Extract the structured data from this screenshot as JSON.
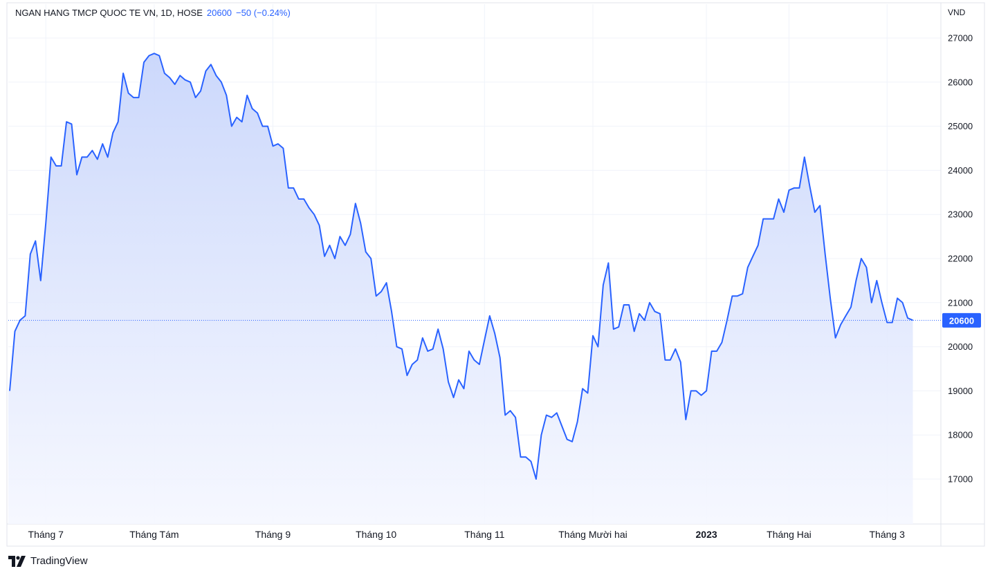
{
  "legend": {
    "symbol": "NGAN HANG TMCP QUOC TE VN, 1D, HOSE",
    "last_price": "20600",
    "change": "−50 (−0.24%)"
  },
  "footer": {
    "brand": "TradingView",
    "logo_icon": "tradingview-logo-icon"
  },
  "colors": {
    "line": "#2962ff",
    "fill_top": "#c9d6fb",
    "fill_bottom": "#f5f7ff",
    "price_tag": "#2962ff",
    "grid": "#f0f3fa"
  },
  "chart_data": {
    "type": "area",
    "title": "NGAN HANG TMCP QUOC TE VN, 1D, HOSE",
    "xlabel": "",
    "ylabel": "VND",
    "currency_label": "VND",
    "ylim": [
      16300,
      27600
    ],
    "y_ticks": [
      17000,
      18000,
      19000,
      20000,
      21000,
      22000,
      23000,
      24000,
      25000,
      26000,
      27000
    ],
    "x_ticks": [
      {
        "label": "Tháng 7",
        "index": 7,
        "bold": false
      },
      {
        "label": "Tháng Tám",
        "index": 28,
        "bold": false
      },
      {
        "label": "Tháng 9",
        "index": 51,
        "bold": false
      },
      {
        "label": "Tháng 10",
        "index": 71,
        "bold": false
      },
      {
        "label": "Tháng 11",
        "index": 92,
        "bold": false
      },
      {
        "label": "Tháng Mười hai",
        "index": 113,
        "bold": false
      },
      {
        "label": "2023",
        "index": 135,
        "bold": true
      },
      {
        "label": "Tháng Hai",
        "index": 151,
        "bold": false
      },
      {
        "label": "Tháng 3",
        "index": 170,
        "bold": false
      }
    ],
    "last_value": 20600,
    "last_value_label": "20600",
    "grid": true,
    "series": [
      {
        "values": [
          19000,
          20350,
          20600,
          20700,
          22100,
          22400,
          21500,
          22800,
          24300,
          24100,
          24100,
          25100,
          25050,
          23900,
          24300,
          24300,
          24450,
          24250,
          24600,
          24300,
          24850,
          25100,
          26200,
          25750,
          25650,
          25650,
          26450,
          26600,
          26650,
          26600,
          26200,
          26100,
          25950,
          26150,
          26050,
          26000,
          25650,
          25800,
          26250,
          26400,
          26150,
          26000,
          25700,
          25000,
          25200,
          25100,
          25700,
          25400,
          25300,
          25000,
          25000,
          24550,
          24600,
          24500,
          23600,
          23600,
          23350,
          23350,
          23150,
          23000,
          22750,
          22050,
          22300,
          22000,
          22500,
          22300,
          22550,
          23250,
          22800,
          22150,
          22000,
          21150,
          21250,
          21450,
          20800,
          20000,
          19950,
          19350,
          19600,
          19700,
          20200,
          19900,
          19950,
          20400,
          19950,
          19200,
          18850,
          19250,
          19050,
          19900,
          19700,
          19600,
          20150,
          20700,
          20300,
          19750,
          18450,
          18550,
          18400,
          17500,
          17500,
          17400,
          17000,
          18000,
          18450,
          18400,
          18500,
          18200,
          17900,
          17850,
          18300,
          19050,
          18950,
          20250,
          20000,
          21400,
          21900,
          20400,
          20450,
          20950,
          20950,
          20350,
          20750,
          20600,
          21000,
          20800,
          20750,
          19700,
          19700,
          19950,
          19650,
          18350,
          19000,
          19000,
          18900,
          19000,
          19900,
          19900,
          20100,
          20600,
          21150,
          21150,
          21200,
          21800,
          22050,
          22300,
          22900,
          22900,
          22900,
          23350,
          23050,
          23550,
          23600,
          23600,
          24300,
          23650,
          23050,
          23200,
          22100,
          21100,
          20200,
          20500,
          20700,
          20900,
          21500,
          22000,
          21800,
          21000,
          21500,
          21000,
          20550,
          20550,
          21100,
          21000,
          20650,
          20600
        ]
      }
    ]
  }
}
